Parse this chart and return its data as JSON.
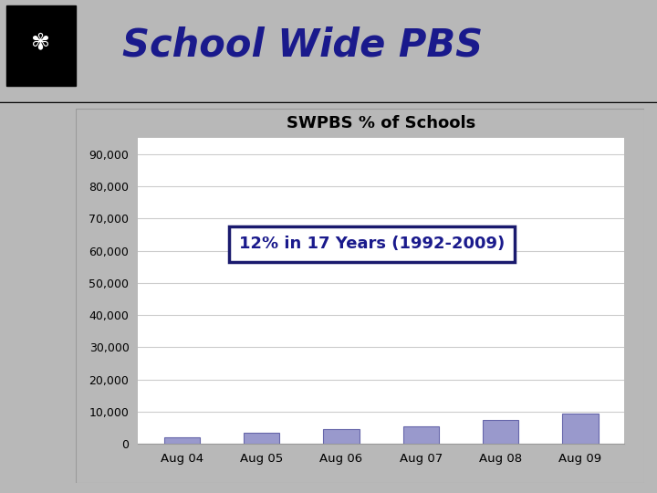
{
  "title": "SWPBS % of Schools",
  "categories": [
    "Aug 04",
    "Aug 05",
    "Aug 06",
    "Aug 07",
    "Aug 08",
    "Aug 09"
  ],
  "values": [
    2000,
    3500,
    4500,
    5500,
    7500,
    9500
  ],
  "bar_color": "#9999cc",
  "bar_edge_color": "#6666aa",
  "yticks": [
    0,
    10000,
    20000,
    30000,
    40000,
    50000,
    60000,
    70000,
    80000,
    90000
  ],
  "ylim": [
    0,
    95000
  ],
  "annotation_text": "12% in 17 Years (1992-2009)",
  "annotation_color": "#1a1a8c",
  "annotation_box_edge": "#1a1a6e",
  "title_color": "#000000",
  "title_fontsize": 13,
  "header_text": "School Wide PBS",
  "header_color": "#1a1a8c",
  "bg_slide_color": "#b8b8b8",
  "bg_chart_color": "#ffffff",
  "bg_white_panel": "#ffffff",
  "stripe_dark": "#7a0000",
  "stripe_black": "#000000",
  "logo_bg": "#000000",
  "grid_color": "#cccccc"
}
